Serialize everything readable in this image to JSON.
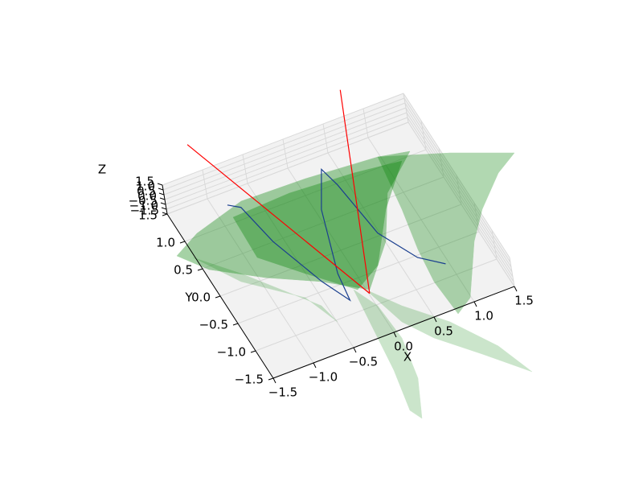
{
  "chart_data": {
    "type": "surface3d",
    "xlabel": "X",
    "ylabel": "Y",
    "zlabel": "Z",
    "xlim": [
      -1.5,
      1.5
    ],
    "ylim": [
      -1.5,
      1.5
    ],
    "zlim": [
      -1.5,
      1.5
    ],
    "xticks": [
      {
        "value": -1.5,
        "label": "−1.5"
      },
      {
        "value": -1.0,
        "label": "−1.0"
      },
      {
        "value": -0.5,
        "label": "−0.5"
      },
      {
        "value": 0.0,
        "label": "0.0"
      },
      {
        "value": 0.5,
        "label": "0.5"
      },
      {
        "value": 1.0,
        "label": "1.0"
      },
      {
        "value": 1.5,
        "label": "1.5"
      }
    ],
    "yticks": [
      {
        "value": -1.5,
        "label": "−1.5"
      },
      {
        "value": -1.0,
        "label": "−1.0"
      },
      {
        "value": -0.5,
        "label": "−0.5"
      },
      {
        "value": 0.0,
        "label": "0.0"
      },
      {
        "value": 0.5,
        "label": "0.5"
      },
      {
        "value": 1.0,
        "label": "1.0"
      },
      {
        "value": 1.5,
        "label": "1.5"
      }
    ],
    "zticks": [
      {
        "value": -1.5,
        "label": "−1.5"
      },
      {
        "value": -1.0,
        "label": "−1.0"
      },
      {
        "value": -0.5,
        "label": "−0.5"
      },
      {
        "value": 0.0,
        "label": "0.0"
      },
      {
        "value": 0.5,
        "label": "0.5"
      },
      {
        "value": 1.0,
        "label": "1.0"
      },
      {
        "value": 1.5,
        "label": "1.5"
      }
    ],
    "grid": true,
    "series": [
      {
        "color": "#1a3f8f",
        "x": [
          -0.91,
          -0.79,
          -0.69,
          -0.46,
          -0.3,
          -0.25,
          0.0,
          0.26,
          0.32,
          0.41,
          0.65,
          0.89
        ],
        "y": [
          1.07,
          0.96,
          0.28,
          -0.58,
          -1.01,
          -0.55,
          0.48,
          1.07,
          0.75,
          -0.18,
          -0.76,
          -1.01
        ],
        "z": [
          0,
          0,
          0,
          0,
          0,
          0,
          0,
          0,
          0,
          0,
          0,
          0
        ]
      },
      {
        "color": "#ff0000",
        "x": [
          -0.92,
          -0.06
        ],
        "y": [
          2.18,
          -1.02
        ],
        "z": [
          0,
          0
        ]
      },
      {
        "color": "#ff0000",
        "x": [
          0.96,
          -0.06
        ],
        "y": [
          2.13,
          -1.02
        ],
        "z": [
          0,
          0
        ]
      }
    ]
  }
}
